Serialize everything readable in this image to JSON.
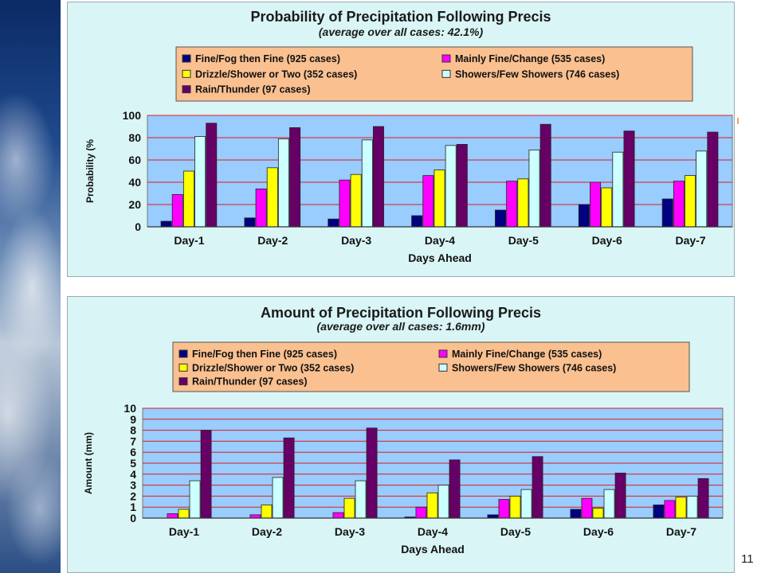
{
  "page": {
    "number": "11"
  },
  "legend_bg": "#fac090",
  "plot_bg": "#99ccff",
  "grid_color": "#e31a1a",
  "series_colors": [
    "#000080",
    "#ff00ff",
    "#ffff00",
    "#ccffff",
    "#660066"
  ],
  "chart_data": [
    {
      "type": "bar",
      "title": "Probability of Precipitation Following Precis",
      "subtitle": "(average over all cases: 42.1%)",
      "xlabel": "Days Ahead",
      "ylabel": "Probability (%",
      "ylim": [
        0,
        100
      ],
      "yticks": [
        0,
        20,
        40,
        60,
        80,
        100
      ],
      "grid": true,
      "legend_position": "top",
      "categories": [
        "Day-1",
        "Day-2",
        "Day-3",
        "Day-4",
        "Day-5",
        "Day-6",
        "Day-7"
      ],
      "series": [
        {
          "name": "Fine/Fog then Fine (925 cases)",
          "values": [
            5,
            8,
            7,
            10,
            15,
            20,
            25
          ]
        },
        {
          "name": "Mainly Fine/Change (535 cases)",
          "values": [
            29,
            34,
            42,
            46,
            41,
            40,
            41
          ]
        },
        {
          "name": "Drizzle/Shower or Two (352 cases)",
          "values": [
            50,
            53,
            47,
            51,
            43,
            35,
            46
          ]
        },
        {
          "name": "Showers/Few Showers (746 cases)",
          "values": [
            81,
            79,
            78,
            73,
            69,
            67,
            68
          ]
        },
        {
          "name": "Rain/Thunder (97 cases)",
          "values": [
            93,
            89,
            90,
            74,
            92,
            86,
            85
          ]
        }
      ]
    },
    {
      "type": "bar",
      "title": "Amount of Precipitation Following Precis",
      "subtitle": "(average over all cases: 1.6mm)",
      "xlabel": "Days Ahead",
      "ylabel": "Amount (mm)",
      "ylim": [
        0,
        10
      ],
      "yticks": [
        0,
        1,
        2,
        3,
        4,
        5,
        6,
        7,
        8,
        9,
        10
      ],
      "grid": true,
      "legend_position": "top",
      "categories": [
        "Day-1",
        "Day-2",
        "Day-3",
        "Day-4",
        "Day-5",
        "Day-6",
        "Day-7"
      ],
      "series": [
        {
          "name": "Fine/Fog then Fine (925 cases)",
          "values": [
            0.0,
            0.0,
            0.0,
            0.1,
            0.3,
            0.8,
            1.2
          ]
        },
        {
          "name": "Mainly Fine/Change (535 cases)",
          "values": [
            0.4,
            0.3,
            0.5,
            1.0,
            1.7,
            1.8,
            1.6
          ]
        },
        {
          "name": "Drizzle/Shower or Two (352 cases)",
          "values": [
            0.8,
            1.2,
            1.8,
            2.3,
            2.0,
            0.9,
            1.9
          ]
        },
        {
          "name": "Showers/Few Showers (746 cases)",
          "values": [
            3.4,
            3.7,
            3.4,
            3.0,
            2.6,
            2.6,
            2.0
          ]
        },
        {
          "name": "Rain/Thunder (97 cases)",
          "values": [
            8.0,
            7.3,
            8.2,
            5.3,
            5.6,
            4.1,
            3.6
          ]
        }
      ]
    }
  ]
}
